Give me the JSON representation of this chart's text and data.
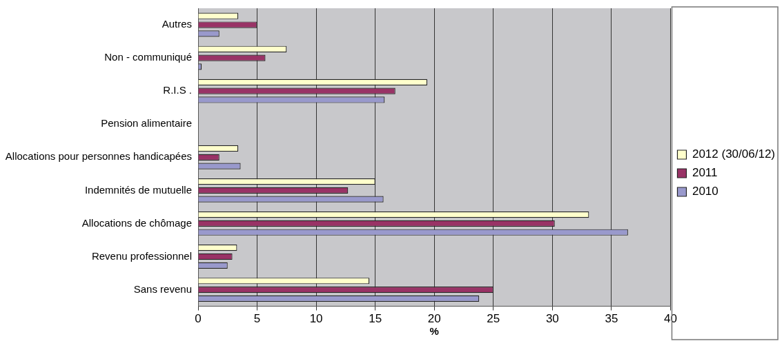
{
  "chart_data": {
    "type": "bar",
    "orientation": "horizontal",
    "xlabel": "%",
    "categories": [
      "Autres",
      "Non - communiqué",
      "R.I.S .",
      "Pension alimentaire",
      "Allocations pour personnes handicapées",
      "Indemnités de mutuelle",
      "Allocations de chômage",
      "Revenu professionnel",
      "Sans revenu"
    ],
    "series": [
      {
        "name": "2012 (30/06/12)",
        "color": "#ffffcc",
        "values": [
          3.4,
          7.5,
          19.4,
          0,
          3.4,
          15.0,
          33.1,
          3.3,
          14.5
        ]
      },
      {
        "name": "2011",
        "color": "#993366",
        "values": [
          5.0,
          5.7,
          16.7,
          0,
          1.8,
          12.7,
          30.2,
          2.9,
          25.0
        ]
      },
      {
        "name": "2010",
        "color": "#9999cc",
        "values": [
          1.8,
          0.3,
          15.8,
          0,
          3.6,
          15.7,
          36.4,
          2.5,
          23.8
        ]
      }
    ],
    "xlim": [
      0,
      40
    ],
    "xticks": [
      0,
      5,
      10,
      15,
      20,
      25,
      30,
      35,
      40
    ],
    "grid": "x",
    "legend": "right"
  }
}
